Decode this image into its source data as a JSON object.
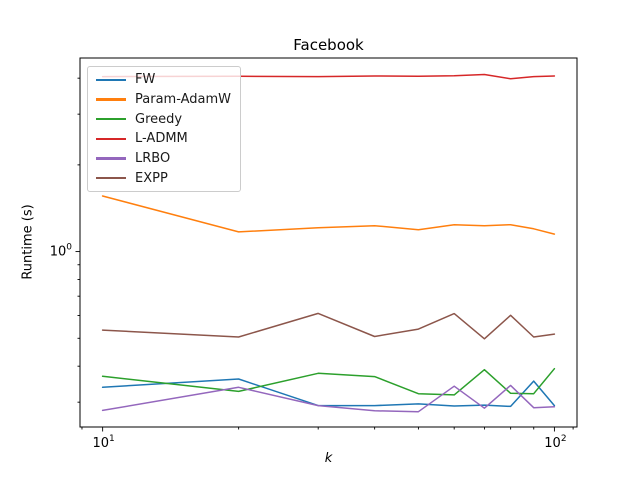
{
  "figure": {
    "title": "Facebook",
    "xlabel": "k",
    "ylabel": "Runtime (s)"
  },
  "chart_data": {
    "type": "line",
    "title": "Facebook",
    "xlabel": "k",
    "ylabel": "Runtime (s)",
    "x_scale": "log",
    "y_scale": "log",
    "grid": false,
    "xlim": [
      8.91,
      112.2
    ],
    "ylim": [
      0.246,
      4.7
    ],
    "x": [
      10,
      20,
      30,
      40,
      50,
      60,
      70,
      80,
      90,
      100
    ],
    "series": [
      {
        "name": "FW",
        "color": "#1f77b4",
        "values": [
          0.338,
          0.361,
          0.292,
          0.292,
          0.296,
          0.291,
          0.293,
          0.29,
          0.355,
          0.292
        ]
      },
      {
        "name": "Param-AdamW",
        "color": "#ff7f0e",
        "values": [
          1.56,
          1.17,
          1.21,
          1.23,
          1.19,
          1.24,
          1.23,
          1.24,
          1.2,
          1.15
        ]
      },
      {
        "name": "Greedy",
        "color": "#2ca02c",
        "values": [
          0.369,
          0.327,
          0.378,
          0.368,
          0.321,
          0.318,
          0.389,
          0.322,
          0.321,
          0.392
        ]
      },
      {
        "name": "L-ADMM",
        "color": "#d62728",
        "values": [
          4.05,
          4.06,
          4.05,
          4.07,
          4.06,
          4.08,
          4.12,
          3.98,
          4.05,
          4.07
        ]
      },
      {
        "name": "LRBO",
        "color": "#9467bd",
        "values": [
          0.281,
          0.338,
          0.292,
          0.28,
          0.278,
          0.341,
          0.286,
          0.343,
          0.287,
          0.289
        ]
      },
      {
        "name": "EXPP",
        "color": "#8c564b",
        "values": [
          0.534,
          0.505,
          0.61,
          0.507,
          0.538,
          0.609,
          0.498,
          0.601,
          0.505,
          0.517
        ]
      }
    ],
    "legend": {
      "position": "upper left"
    },
    "x_ticks": {
      "major": [
        {
          "value": 10,
          "base": "10",
          "exp": "1"
        },
        {
          "value": 100,
          "base": "10",
          "exp": "2"
        }
      ],
      "minor": [
        9,
        20,
        30,
        40,
        50,
        60,
        70,
        80,
        90,
        110
      ]
    },
    "y_ticks": {
      "major": [
        {
          "value": 1,
          "base": "10",
          "exp": "0"
        }
      ],
      "minor": [
        0.3,
        0.4,
        0.5,
        0.6,
        0.7,
        0.8,
        0.9,
        2,
        3,
        4
      ]
    }
  }
}
